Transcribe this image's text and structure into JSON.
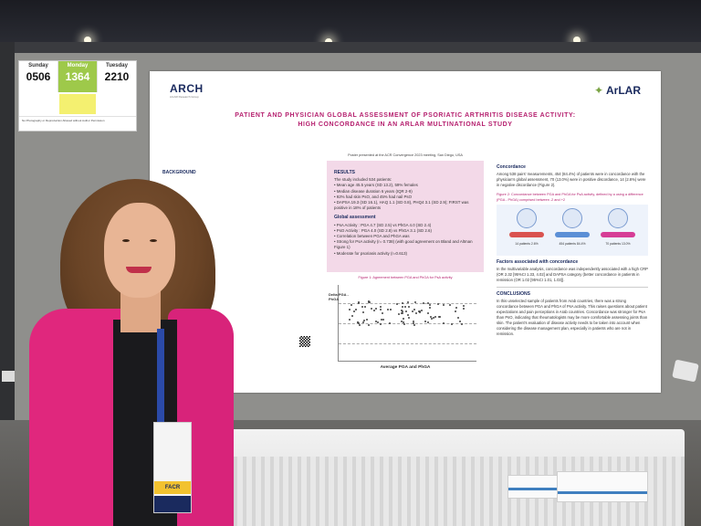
{
  "schedule": {
    "days": [
      {
        "name": "Sunday",
        "number": "0506"
      },
      {
        "name": "Monday",
        "number": "1364"
      },
      {
        "name": "Tuesday",
        "number": "2210"
      }
    ],
    "footer": "No Photography or Reproduction Allowed without Author Permission"
  },
  "poster": {
    "logo_left": "ARCH",
    "logo_left_sub": "ArLAR Research Group",
    "logo_right": "ArLAR",
    "title_line1": "PATIENT AND PHYSICIAN GLOBAL ASSESSMENT OF PSORIATIC ARTHRITIS DISEASE ACTIVITY:",
    "title_line2": "HIGH CONCORDANCE IN AN ARLAR MULTINATIONAL STUDY",
    "presented": "Poster presented at the ACR Convergence 2023 meeting, San Diego, USA",
    "background_head": "BACKGROUND",
    "results_head": "RESULTS",
    "results_intro": "The study included 534 patients:",
    "results_items": [
      "Mean age 45.5 years (SD 13.2), 59% females",
      "Median disease duration 6 years (IQR 2-9)",
      "92% had skin PsO, and 45% had nail PsO",
      "DAPSA 19.3 (SD 16.1), HAQ 1.1 (SD 0.8), PHQ4 3.1 (SD 2.9); FIRST was positive in 18% of patients"
    ],
    "global_head": "Global assessment",
    "global_items": [
      "PsA Activity : PGA 4.7 (SD 2.5) vs PhGA 4.0 (SD 2.4)",
      "PsO Activity : PGA 4.0 (SD 2.8) vs PhGA 3.1 (SD 2.6)",
      "Correlation between PGA and PhGA was",
      "Strong for PsA activity (r= 0.738) (with good agreement on Bland and Altman Figure 1)",
      "Moderate for psoriasis activity (r=0.613)"
    ],
    "figure1_caption": "Figure 1: Agreement between PGA and PhGA for PsA activity",
    "figure1_ylabel": "Delta PGA - PhGA",
    "figure1_xlabel": "Average PGA and PhGA",
    "concordance_head": "Concordance",
    "concordance_text": "Among 538 pairs' measurements, 454 (84.4%) of patients were in concordance with the physician's global assessment, 70 (13.0%) were in positive discordance, 14 (2.6%) were in negative discordance (Figure 2).",
    "figure2_caption": "Figure 2: Concordance between PGA and PhGA for PsA activity, defined by a using a difference (PGA - PhGA) comprised between -2 and +2",
    "figure2_labels": [
      "14 patients 2.6%",
      "454 patients 84.4%",
      "70 patients 13.0%"
    ],
    "factors_head": "Factors associated with concordance",
    "factors_text": "In the multivariable analysis, concordance was independently associated with a high CRP (OR 2.32 [95%CI 1.33, 4.02] and DAPSA category (better concordance in patients in remission (OR 1.02 [95%CI 1.01, 1.03]).",
    "conclusions_head": "CONCLUSIONS",
    "conclusions_text": "In this unselected sample of patients from Arab countries, there was a strong concordance between PGA and PhGA of PsA activity. This raises questions about patient expectations and pain perceptions in Arab countries. Concordance was stronger for PsA than PsO, indicating that rheumatologists may be more comfortable assessing joints than skin. The patient's evaluation of disease activity needs to be taken into account when considering the disease management plan, especially in patients who are not in remission."
  },
  "badge": {
    "stripe": "FACR"
  },
  "colors": {
    "title_magenta": "#b51f6e",
    "results_bg": "#f3d9e8",
    "blazer": "#e0277d",
    "board": "#8f8f8c"
  }
}
